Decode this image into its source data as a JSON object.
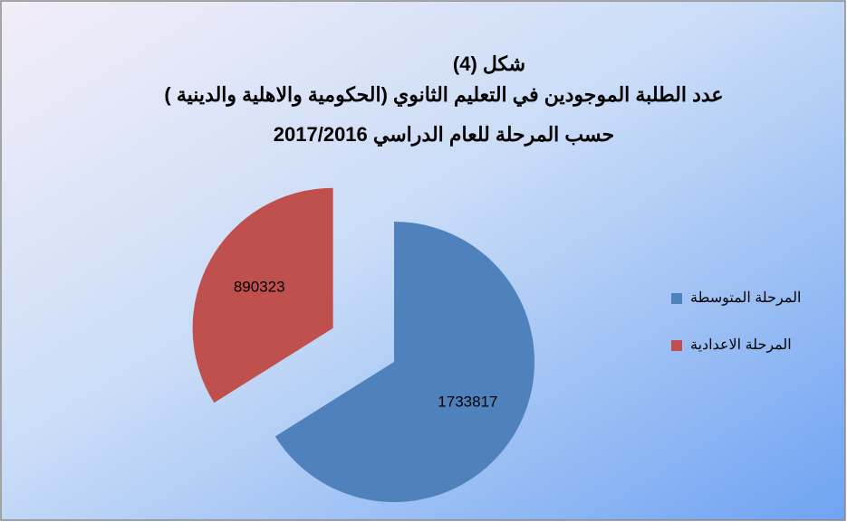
{
  "chart_data": {
    "type": "pie",
    "title": [
      "شكل (4)",
      "عدد الطلبة الموجودين في التعليم الثانوي (الحكومية والاهلية والدينية )",
      "حسب المرحلة للعام الدراسي 2017/2016"
    ],
    "categories": [
      "المرحلة المتوسطة",
      "المرحلة الاعدادية"
    ],
    "values": [
      1733817,
      890323
    ],
    "colors": [
      "#4f81bd",
      "#c0504d"
    ],
    "explode": [
      false,
      true
    ],
    "legend": "right"
  }
}
